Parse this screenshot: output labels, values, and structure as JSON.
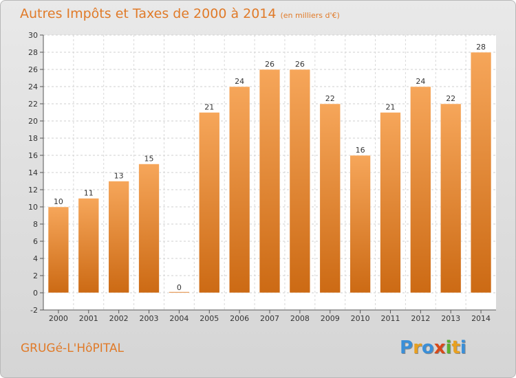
{
  "title": "Autres Impôts et Taxes de 2000 à 2014",
  "subtitle": "(en milliers d'€)",
  "commune": "GRUGé-L'HôPITAL",
  "logo": {
    "letters": [
      "P",
      "r",
      "o",
      "x",
      "i",
      "t",
      "i"
    ],
    "colors": [
      "#3a8fd8",
      "#e8a020",
      "#3a8fd8",
      "#d84a1a",
      "#5cb030",
      "#e8a020",
      "#3a8fd8"
    ]
  },
  "colors": {
    "bar_top": "#f6a65a",
    "bar_bottom": "#cc6a14",
    "accent": "#e07a28"
  },
  "chart_data": {
    "type": "bar",
    "title": "Autres Impôts et Taxes de 2000 à 2014",
    "subtitle": "(en milliers d'€)",
    "categories": [
      "2000",
      "2001",
      "2002",
      "2003",
      "2004",
      "2005",
      "2006",
      "2007",
      "2008",
      "2009",
      "2010",
      "2011",
      "2012",
      "2013",
      "2014"
    ],
    "values": [
      10,
      11,
      13,
      15,
      0,
      21,
      24,
      26,
      26,
      22,
      16,
      21,
      24,
      22,
      28
    ],
    "ylim": [
      -2,
      30
    ],
    "yticks": [
      -2,
      0,
      2,
      4,
      6,
      8,
      10,
      12,
      14,
      16,
      18,
      20,
      22,
      24,
      26,
      28,
      30
    ],
    "grid": true,
    "legend": "none"
  }
}
